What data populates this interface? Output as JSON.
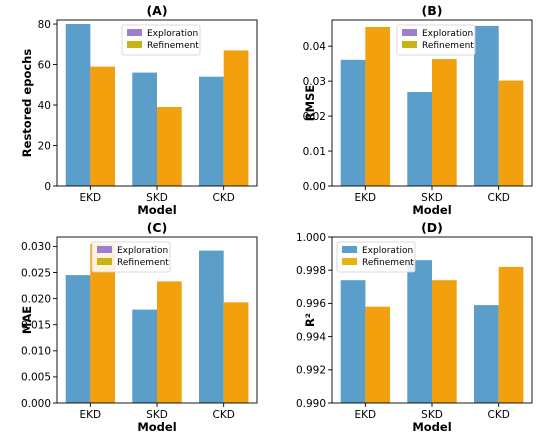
{
  "chart_data": [
    {
      "panel": "A",
      "type": "bar",
      "title": "(A)",
      "xlabel": "Model",
      "ylabel": "Restored epochs",
      "categories": [
        "EKD",
        "SKD",
        "CKD"
      ],
      "ylim": [
        0,
        82
      ],
      "yticks": [
        "0",
        "20",
        "40",
        "60",
        "80"
      ],
      "ytick_values": [
        0,
        20,
        40,
        60,
        80
      ],
      "legend_position": "top-center",
      "series": [
        {
          "name": "Exploration",
          "values": [
            80,
            56,
            54
          ]
        },
        {
          "name": "Refinement",
          "values": [
            59,
            39,
            67
          ]
        }
      ]
    },
    {
      "panel": "B",
      "type": "bar",
      "title": "(B)",
      "xlabel": "Model",
      "ylabel": "RMSE",
      "categories": [
        "EKD",
        "SKD",
        "CKD"
      ],
      "ylim": [
        0,
        0.0475
      ],
      "yticks": [
        "0.00",
        "0.01",
        "0.02",
        "0.03",
        "0.04"
      ],
      "ytick_values": [
        0,
        0.01,
        0.02,
        0.03,
        0.04
      ],
      "legend_position": "top-center",
      "series": [
        {
          "name": "Exploration",
          "values": [
            0.0361,
            0.0269,
            0.0458
          ]
        },
        {
          "name": "Refinement",
          "values": [
            0.0455,
            0.0363,
            0.0302
          ]
        }
      ]
    },
    {
      "panel": "C",
      "type": "bar",
      "title": "(C)",
      "xlabel": "Model",
      "ylabel": "MAE",
      "categories": [
        "EKD",
        "SKD",
        "CKD"
      ],
      "ylim": [
        0,
        0.0318
      ],
      "yticks": [
        "0.000",
        "0.005",
        "0.010",
        "0.015",
        "0.020",
        "0.025",
        "0.030"
      ],
      "ytick_values": [
        0,
        0.005,
        0.01,
        0.015,
        0.02,
        0.025,
        0.03
      ],
      "legend_position": "top-left",
      "series": [
        {
          "name": "Exploration",
          "values": [
            0.0245,
            0.0179,
            0.0292
          ]
        },
        {
          "name": "Refinement",
          "values": [
            0.0305,
            0.0233,
            0.0193
          ]
        }
      ]
    },
    {
      "panel": "D",
      "type": "bar",
      "title": "(D)",
      "xlabel": "Model",
      "ylabel": "R²",
      "categories": [
        "EKD",
        "SKD",
        "CKD"
      ],
      "ylim": [
        0.99,
        1.0
      ],
      "yticks": [
        "0.990",
        "0.992",
        "0.994",
        "0.996",
        "0.998",
        "1.000"
      ],
      "ytick_values": [
        0.99,
        0.992,
        0.994,
        0.996,
        0.998,
        1.0
      ],
      "legend_position": "top-left",
      "series": [
        {
          "name": "Exploration",
          "values": [
            0.9974,
            0.9986,
            0.9959
          ]
        },
        {
          "name": "Refinement",
          "values": [
            0.9958,
            0.9974,
            0.9982
          ]
        }
      ]
    }
  ],
  "colors": {
    "exploration_bar": "#5b9ec9",
    "refinement_bar": "#f2a00e",
    "legend_exploration_abc": "#9b7fd0",
    "legend_refinement_abc": "#c4b416",
    "legend_exploration_d": "#5b9ec9",
    "legend_refinement_d": "#e8b30e"
  }
}
